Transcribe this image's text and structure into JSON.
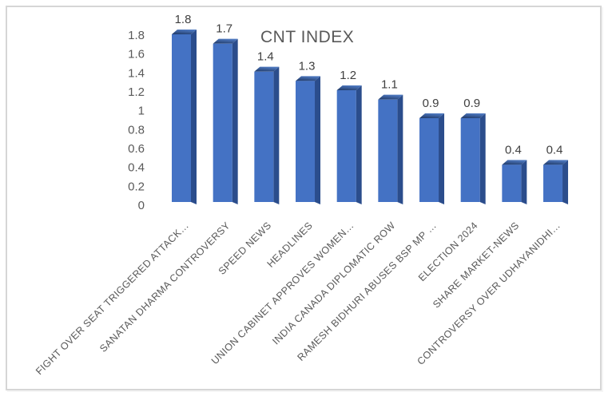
{
  "chart_data": {
    "type": "bar",
    "style": "3d-column",
    "title": "CNT INDEX",
    "categories": [
      "FIGHT OVER SEAT TRIGGERED ATTACK…",
      "SANATAN DHARMA CONTROVERSY",
      "SPEED NEWS",
      "HEADLINES",
      "UNION CABINET APPROVES WOMEN…",
      "INDIA CANADA DIPLOMATIC ROW",
      "RAMESH BIDHURI ABUSES BSP MP …",
      "ELECTION 2024",
      "SHARE MARKET-NEWS",
      "CONTROVERSY OVER UDHAYANIDHI…"
    ],
    "values": [
      1.8,
      1.7,
      1.4,
      1.3,
      1.2,
      1.1,
      0.9,
      0.9,
      0.4,
      0.4
    ],
    "data_labels": [
      "1.8",
      "1.7",
      "1.4",
      "1.3",
      "1.2",
      "1.1",
      "0.9",
      "0.9",
      "0.4",
      "0.4"
    ],
    "xlabel": "",
    "ylabel": "",
    "ylim": [
      0,
      1.8
    ],
    "ytick_step": 0.2,
    "yticks": [
      "0",
      "0.2",
      "0.4",
      "0.6",
      "0.8",
      "1",
      "1.2",
      "1.4",
      "1.6",
      "1.8"
    ],
    "grid": false,
    "legend_position": "none",
    "colors": {
      "bar_front": "#4472C4",
      "bar_side": "#2B4D8C",
      "bar_top_dark": "#1F3864",
      "bar_top_light": "#4C77BE",
      "axis_text": "#595959",
      "value_text": "#3F3F3F",
      "title_text": "#595959",
      "frame_border": "#D6D6D6"
    }
  }
}
